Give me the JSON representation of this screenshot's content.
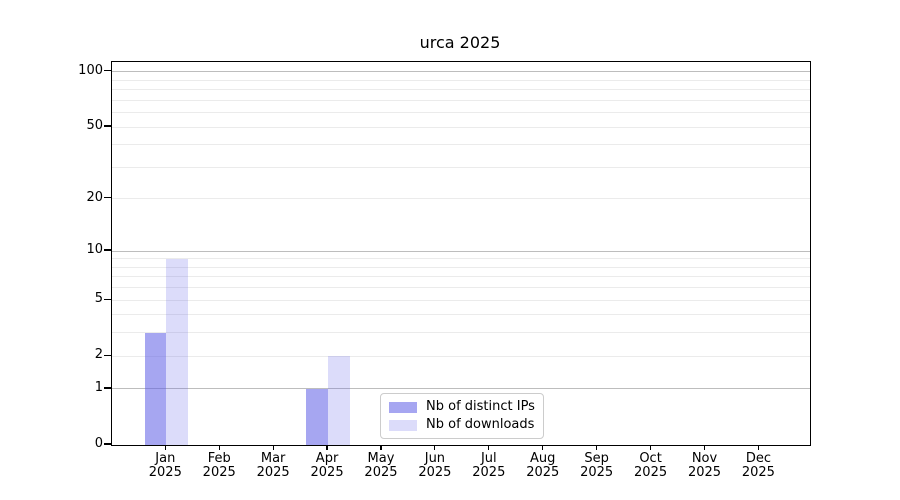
{
  "chart_data": {
    "type": "bar",
    "title": "urca 2025",
    "categories": [
      "Jan",
      "Feb",
      "Mar",
      "Apr",
      "May",
      "Jun",
      "Jul",
      "Aug",
      "Sep",
      "Oct",
      "Nov",
      "Dec"
    ],
    "category_year": "2025",
    "series": [
      {
        "name": "Nb of distinct IPs",
        "color": "rgba(92,92,230,0.55)",
        "values": [
          3,
          0,
          0,
          1,
          0,
          0,
          0,
          0,
          0,
          0,
          0,
          0
        ]
      },
      {
        "name": "Nb of downloads",
        "color": "rgba(92,92,230,0.21)",
        "values": [
          9,
          0,
          0,
          2,
          0,
          0,
          0,
          0,
          0,
          0,
          0,
          0
        ]
      }
    ],
    "yscale": "log1p",
    "y_tick_labels": [
      "0",
      "1",
      "2",
      "5",
      "10",
      "20",
      "50",
      "100"
    ],
    "y_ticks": [
      0,
      1,
      2,
      5,
      10,
      20,
      50,
      100
    ],
    "ylim": [
      0,
      113
    ],
    "xlabel": "",
    "ylabel": "",
    "grid": true,
    "legend_position": "lower center",
    "colors": {
      "major_grid": "#bdbdbd",
      "minor_grid": "#ebebeb",
      "spine": "#000000"
    }
  }
}
